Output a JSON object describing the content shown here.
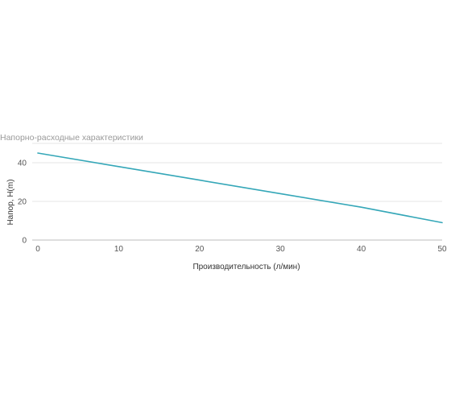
{
  "chart_data": {
    "type": "line",
    "title": "Напорно-расходные характеристики",
    "xlabel": "Производительность (л/мин)",
    "ylabel": "Напор, H(m)",
    "x_ticks": [
      "0",
      "10",
      "20",
      "30",
      "40",
      "50"
    ],
    "y_ticks": [
      "0",
      "20",
      "40"
    ],
    "xlim": [
      0,
      50
    ],
    "ylim": [
      0,
      50
    ],
    "grid": true,
    "series": [
      {
        "color": "#35a7b8",
        "x": [
          0,
          10,
          20,
          30,
          40,
          50
        ],
        "y": [
          45,
          38,
          31,
          24,
          17,
          9
        ]
      }
    ]
  }
}
